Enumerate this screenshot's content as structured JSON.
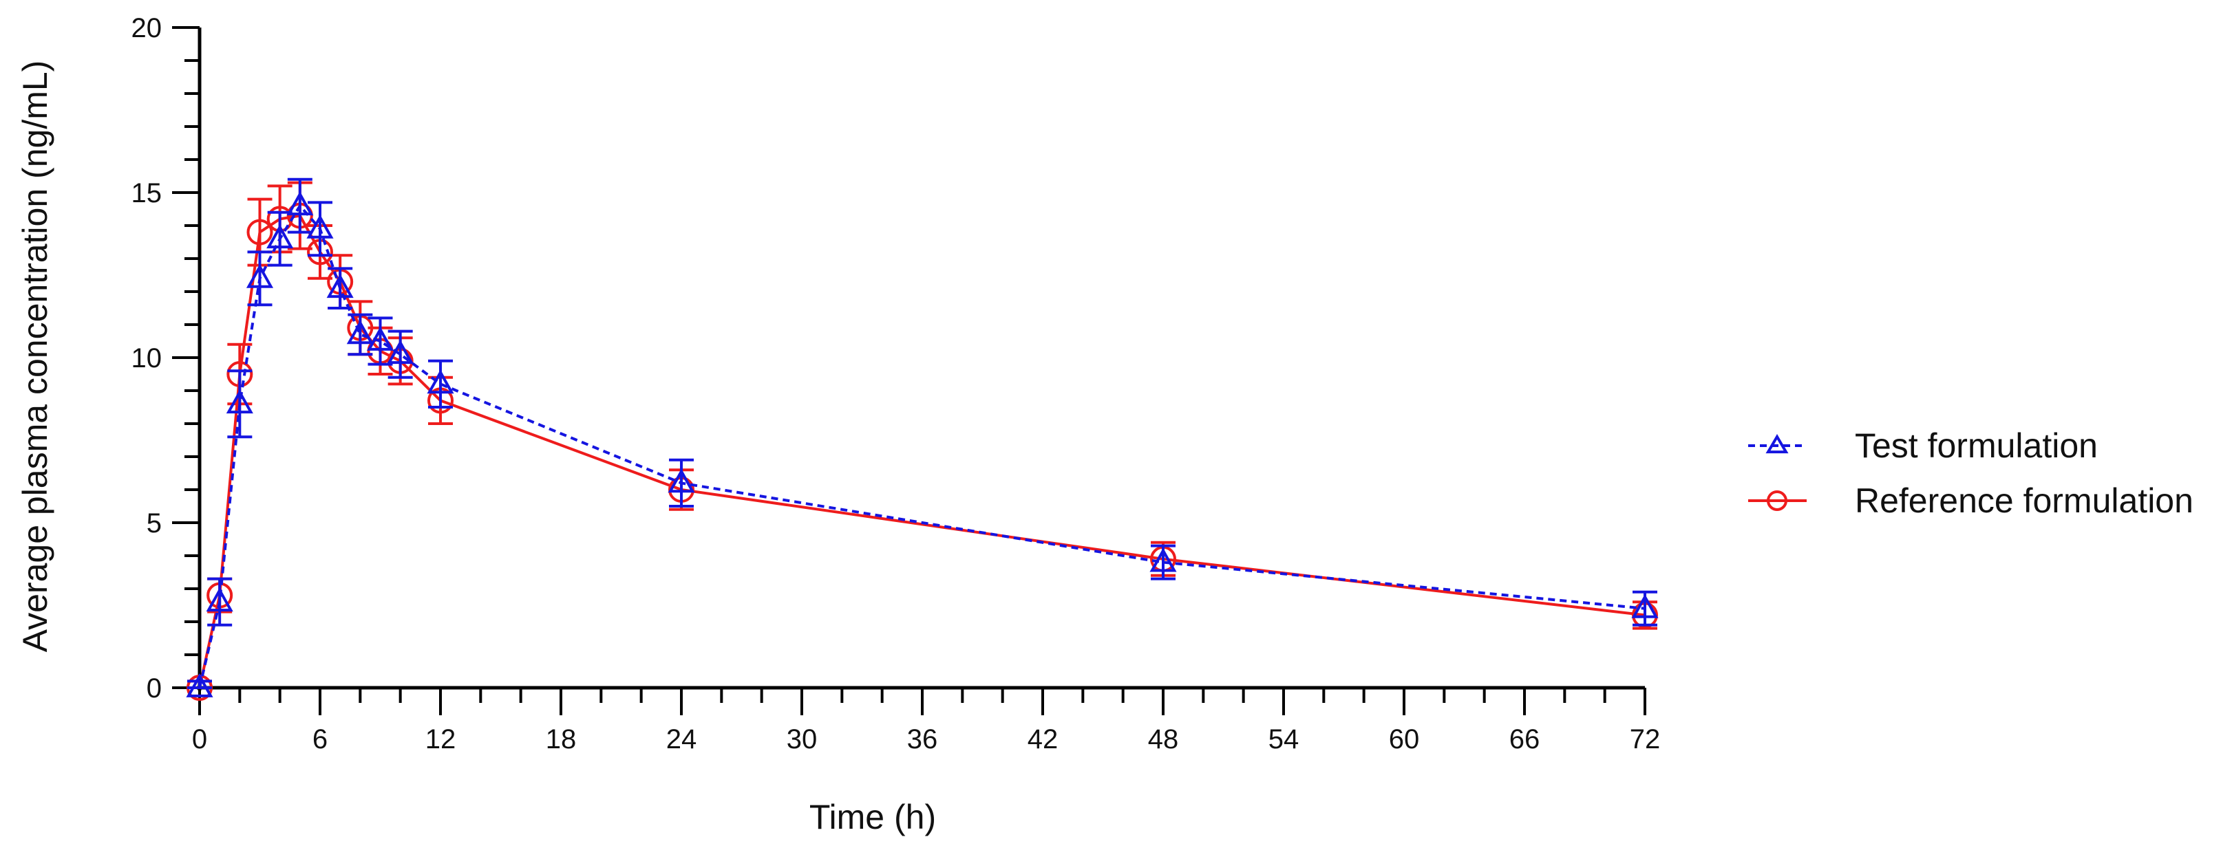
{
  "chart_data": {
    "type": "line",
    "title": "",
    "xlabel": "Time (h)",
    "ylabel": "Average plasma concentration (ng/mL)",
    "xlim": [
      0,
      72
    ],
    "ylim": [
      0,
      20
    ],
    "xticks": [
      0,
      6,
      12,
      18,
      24,
      30,
      36,
      42,
      48,
      54,
      60,
      66,
      72
    ],
    "yticks": [
      0,
      5,
      10,
      15,
      20
    ],
    "grid": false,
    "legend_position": "right",
    "series": [
      {
        "name": "Test formulation",
        "color": "#1515e0",
        "line_style": "dashed",
        "marker": "triangle",
        "x": [
          0,
          1,
          2,
          3,
          4,
          5,
          6,
          7,
          8,
          9,
          10,
          12,
          24,
          48,
          72
        ],
        "y": [
          0,
          2.6,
          8.6,
          12.4,
          13.6,
          14.6,
          13.9,
          12.1,
          10.7,
          10.5,
          10.1,
          9.2,
          6.2,
          3.8,
          2.4
        ],
        "err": [
          0.2,
          0.7,
          1.0,
          0.8,
          0.8,
          0.8,
          0.8,
          0.6,
          0.6,
          0.7,
          0.7,
          0.7,
          0.7,
          0.5,
          0.5
        ]
      },
      {
        "name": "Reference formulation",
        "color": "#ee1c1c",
        "line_style": "solid",
        "marker": "circle",
        "x": [
          0,
          1,
          2,
          3,
          4,
          5,
          6,
          7,
          8,
          9,
          10,
          12,
          24,
          48,
          72
        ],
        "y": [
          0,
          2.8,
          9.5,
          13.8,
          14.2,
          14.3,
          13.2,
          12.3,
          10.9,
          10.2,
          9.9,
          8.7,
          6.0,
          3.9,
          2.2
        ],
        "err": [
          0.2,
          0.5,
          0.9,
          1.0,
          1.0,
          1.0,
          0.8,
          0.8,
          0.8,
          0.7,
          0.7,
          0.7,
          0.6,
          0.5,
          0.4
        ]
      }
    ]
  }
}
